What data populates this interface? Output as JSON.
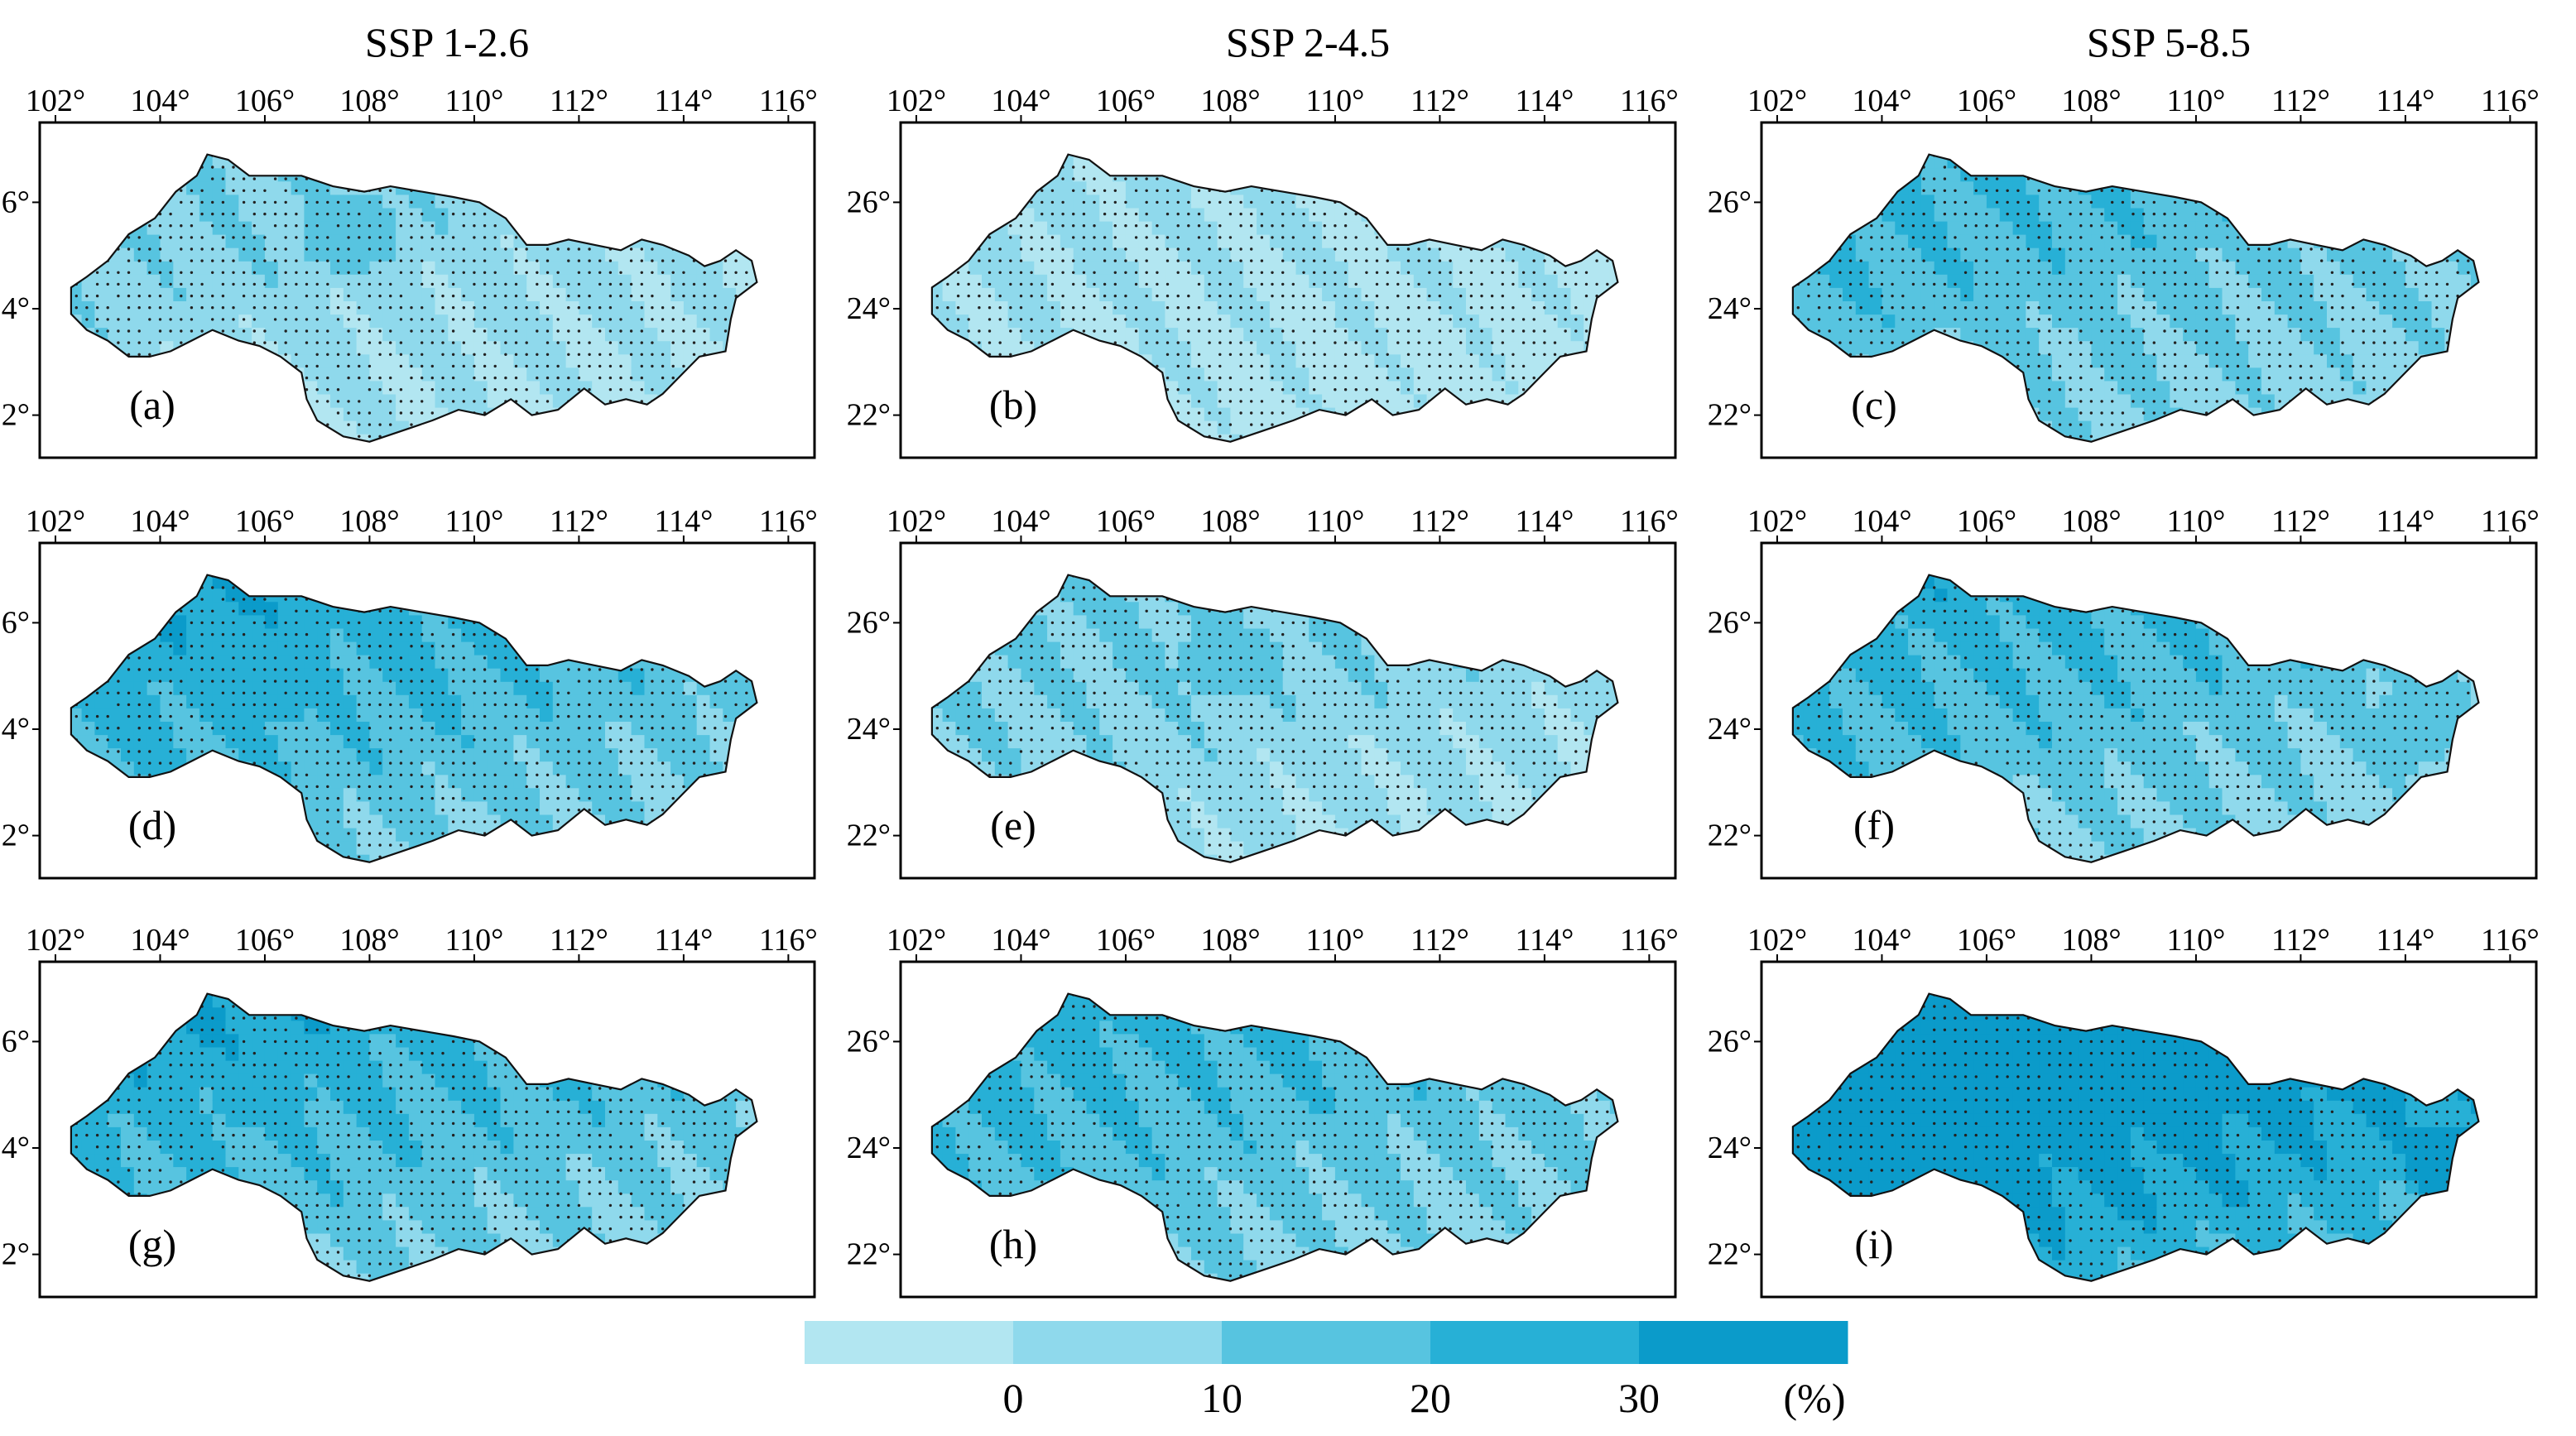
{
  "figure": {
    "column_titles": [
      "SSP 1-2.6",
      "SSP 2-4.5",
      "SSP 5-8.5"
    ],
    "lon_ticks": [
      "102°",
      "104°",
      "106°",
      "108°",
      "110°",
      "112°",
      "114°",
      "116°"
    ],
    "lat_ticks": [
      "26°",
      "24°",
      "22°"
    ],
    "lon_values": [
      102,
      104,
      106,
      108,
      110,
      112,
      114,
      116
    ],
    "lat_values": [
      26,
      24,
      22
    ],
    "lon_range": [
      101.7,
      116.5
    ],
    "lat_range": [
      21.2,
      27.5
    ],
    "panels": [
      {
        "label": "(a)",
        "scenario": "SSP 1-2.6",
        "row": 0,
        "intensity": 0.15,
        "patches": [
          {
            "lon": 107.5,
            "lat": 25.3,
            "level": 2
          }
        ]
      },
      {
        "label": "(b)",
        "scenario": "SSP 2-4.5",
        "row": 0,
        "intensity": 0.05,
        "patches": []
      },
      {
        "label": "(c)",
        "scenario": "SSP 5-8.5",
        "row": 0,
        "intensity": 0.35,
        "patches": [
          {
            "lon": 107.3,
            "lat": 25.0,
            "level": 2
          }
        ]
      },
      {
        "label": "(d)",
        "scenario": "SSP 1-2.6",
        "row": 1,
        "intensity": 0.45,
        "patches": [
          {
            "lon": 106.0,
            "lat": 24.7,
            "level": 3
          }
        ]
      },
      {
        "label": "(e)",
        "scenario": "SSP 2-4.5",
        "row": 1,
        "intensity": 0.2,
        "patches": [
          {
            "lon": 107.8,
            "lat": 25.2,
            "level": 2
          }
        ]
      },
      {
        "label": "(f)",
        "scenario": "SSP 5-8.5",
        "row": 1,
        "intensity": 0.4,
        "patches": [
          {
            "lon": 113.8,
            "lat": 23.8,
            "level": 2
          }
        ]
      },
      {
        "label": "(g)",
        "scenario": "SSP 1-2.6",
        "row": 2,
        "intensity": 0.45,
        "patches": [
          {
            "lon": 105.8,
            "lat": 24.9,
            "level": 3
          }
        ]
      },
      {
        "label": "(h)",
        "scenario": "SSP 2-4.5",
        "row": 2,
        "intensity": 0.4,
        "patches": []
      },
      {
        "label": "(i)",
        "scenario": "SSP 5-8.5",
        "row": 2,
        "intensity": 0.8,
        "patches": [
          {
            "lon": 106.5,
            "lat": 25.0,
            "level": 4
          },
          {
            "lon": 114.8,
            "lat": 23.6,
            "level": 4
          }
        ]
      }
    ],
    "colorbar": {
      "colors": [
        "#b2e6f1",
        "#8fd9ec",
        "#57c4e0",
        "#27b0d6",
        "#0b9bca"
      ],
      "tick_labels": [
        "0",
        "10",
        "20",
        "30"
      ],
      "unit": "(%)"
    }
  }
}
